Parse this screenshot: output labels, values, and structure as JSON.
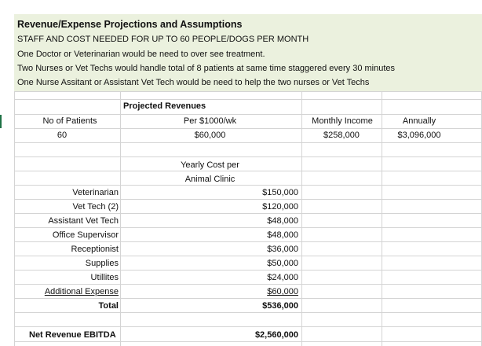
{
  "header": {
    "title": "Revenue/Expense Projections and Assumptions",
    "lines": [
      "STAFF AND COST NEEDED FOR UP TO 60 PEOPLE/DOGS PER MONTH",
      "One Doctor or Veterinarian would be need to over see treatment.",
      "Two Nurses or Vet Techs would handle total of 8 patients at same time staggered every 30 minutes",
      "One Nurse Assitant or Assistant Vet Tech would be need to help the two nurses or Vet Techs"
    ]
  },
  "revenue": {
    "section_label": "Projected Revenues",
    "headers": {
      "patients": "No of Patients",
      "rate": "Per $1000/wk",
      "monthly": "Monthly Income",
      "annual": "Annually"
    },
    "values": {
      "patients": "60",
      "rate": "$60,000",
      "monthly": "$258,000",
      "annual": "$3,096,000"
    }
  },
  "costs": {
    "header_line1": "Yearly Cost per",
    "header_line2": "Animal Clinic",
    "items": [
      {
        "label": "Veterinarian",
        "value": "$150,000"
      },
      {
        "label": "Vet Tech (2)",
        "value": "$120,000"
      },
      {
        "label": "Assistant Vet Tech",
        "value": "$48,000"
      },
      {
        "label": "Office Supervisor",
        "value": "$48,000"
      },
      {
        "label": "Receptionist",
        "value": "$36,000"
      },
      {
        "label": "Supplies",
        "value": "$50,000"
      },
      {
        "label": "Utillites",
        "value": "$24,000"
      },
      {
        "label": "Additional Expense",
        "value": "$60,000"
      }
    ],
    "total_label": "Total",
    "total_value": "$536,000"
  },
  "net": {
    "label": "Net Revenue EBITDA",
    "value": "$2,560,000"
  },
  "colors": {
    "header_fill": "#ebf1de",
    "gridline": "#d4d4d4",
    "selection_marker": "#1e7145"
  }
}
